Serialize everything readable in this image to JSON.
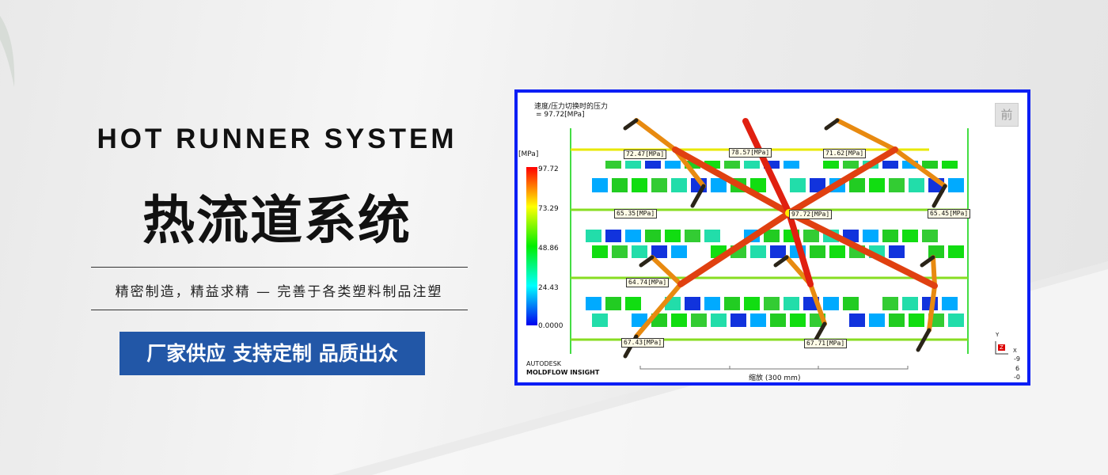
{
  "banner": {
    "title_en": "HOT RUNNER SYSTEM",
    "title_cn": "热流道系统",
    "subtitle": "精密制造，精益求精 — 完善于各类塑料制品注塑",
    "cta_label": "厂家供应 支持定制 品质出众",
    "cta_color": "#2257a7"
  },
  "simulation": {
    "result_title": "速度/压力切换时的压力",
    "result_value": "= 97.72[MPa]",
    "view_button": "前",
    "unit": "[MPa]",
    "scale_ticks": [
      "97.72",
      "73.29",
      "48.86",
      "24.43",
      "0.0000"
    ],
    "probe_labels": [
      "72.47[MPa]",
      "78.57[MPa]",
      "71.62[MPa]",
      "65.35[MPa]",
      "97.72[MPa]",
      "65.45[MPa]",
      "64.74[MPa]",
      "67.43[MPa]",
      "67.71[MPa]"
    ],
    "brand_top": "AUTODESK",
    "brand_bottom": "MOLDFLOW INSIGHT",
    "scale_bar_label": "缩放 (300 mm)",
    "axis": {
      "y": "Y",
      "z": "Z",
      "x": "X",
      "readout": [
        "-9",
        "6",
        "-0"
      ]
    },
    "border_color": "#0b1ef5"
  }
}
